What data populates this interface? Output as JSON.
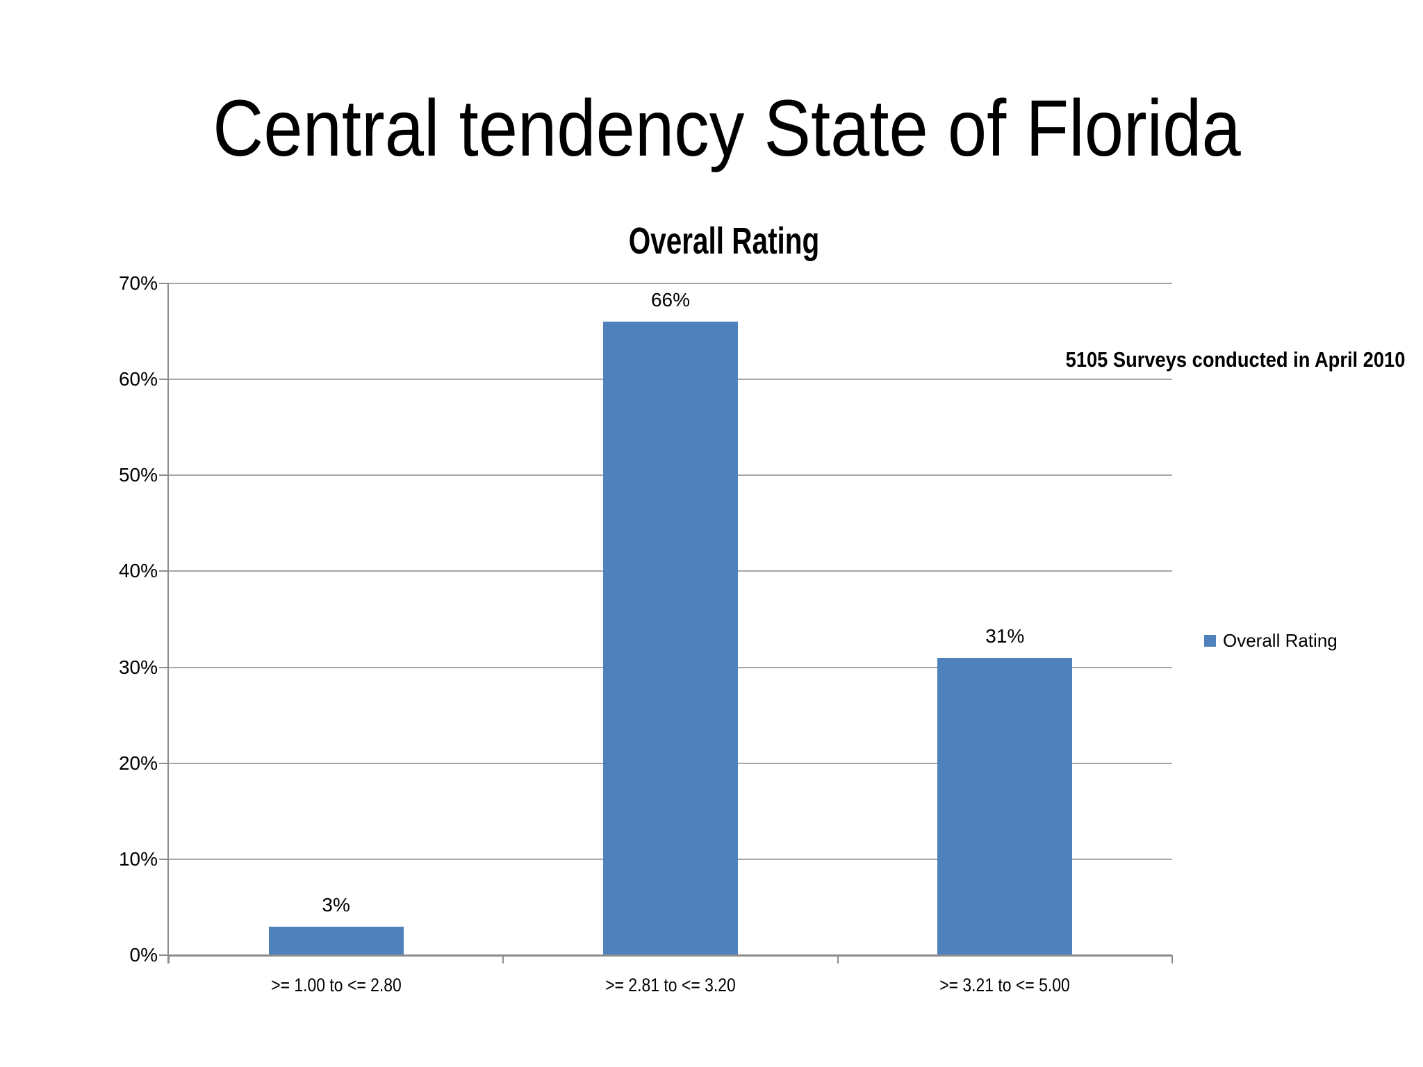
{
  "slide": {
    "title": "Central tendency State of Florida",
    "annotation": "5105 Surveys conducted in April 2010"
  },
  "chart_data": {
    "type": "bar",
    "title": "Overall Rating",
    "categories": [
      ">= 1.00 to <= 2.80",
      ">= 2.81 to <= 3.20",
      ">= 3.21 to <= 5.00"
    ],
    "values": [
      3,
      66,
      31
    ],
    "value_labels": [
      "3%",
      "66%",
      "31%"
    ],
    "xlabel": "",
    "ylabel": "",
    "ylim": [
      0,
      70
    ],
    "ytick_step": 10,
    "ytick_labels": [
      "0%",
      "10%",
      "20%",
      "30%",
      "40%",
      "50%",
      "60%",
      "70%"
    ],
    "grid": true,
    "legend": {
      "label": "Overall Rating",
      "position": "right"
    },
    "colors": {
      "bar": "#4F81BD",
      "gridline": "#A6A6A6",
      "axis": "#8C8C8C",
      "text": "#000000"
    }
  }
}
